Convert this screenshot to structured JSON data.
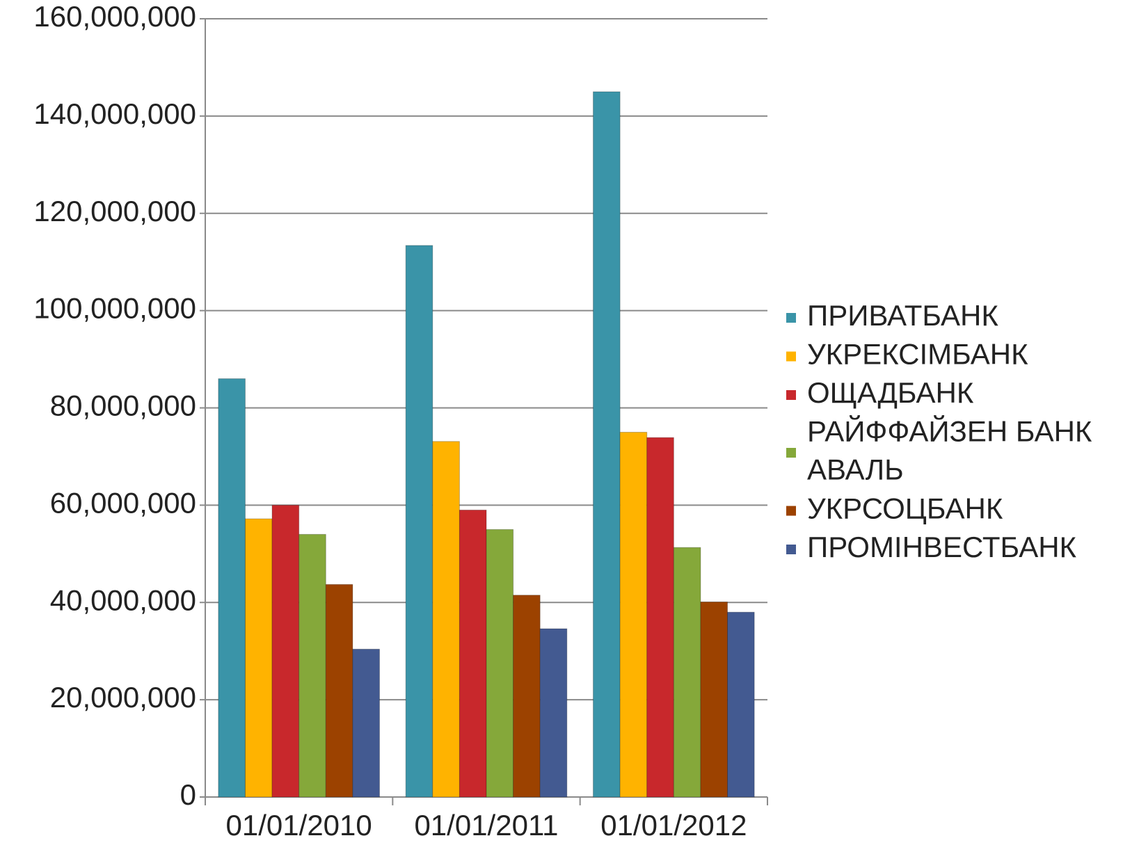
{
  "chart_data": {
    "type": "bar",
    "categories": [
      "01/01/2010",
      "01/01/2011",
      "01/01/2012"
    ],
    "series": [
      {
        "name": "ПРИВАТБАНК",
        "color": "#3a94a8",
        "values": [
          86000000,
          113400000,
          145000000
        ]
      },
      {
        "name": "УКРЕКСІМБАНК",
        "color": "#ffb300",
        "values": [
          57200000,
          73100000,
          75000000
        ]
      },
      {
        "name": "ОЩАДБАНК",
        "color": "#c8282c",
        "values": [
          60000000,
          59000000,
          73900000
        ]
      },
      {
        "name": "РАЙФФАЙЗЕН БАНК АВАЛЬ",
        "color": "#85a83a",
        "values": [
          54000000,
          55000000,
          51300000
        ]
      },
      {
        "name": "УКРСОЦБАНК",
        "color": "#9c4200",
        "values": [
          43700000,
          41500000,
          40100000
        ]
      },
      {
        "name": "ПРОМІНВЕСТБАНК",
        "color": "#435a91",
        "values": [
          30400000,
          34600000,
          38000000
        ]
      }
    ],
    "ylim": [
      0,
      160000000
    ],
    "yticks": [
      0,
      {
        "value": 20000000,
        "label": "20,000,000"
      },
      {
        "value": 40000000,
        "label": "40,000,000"
      },
      {
        "value": 60000000,
        "label": "60,000,000"
      },
      {
        "value": 80000000,
        "label": "80,000,000"
      },
      {
        "value": 100000000,
        "label": "100,000,000"
      },
      {
        "value": 120000000,
        "label": "120,000,000"
      },
      {
        "value": 140000000,
        "label": "140,000,000"
      },
      {
        "value": 160000000,
        "label": "160,000,000"
      }
    ],
    "grid": true,
    "legend": "right"
  }
}
